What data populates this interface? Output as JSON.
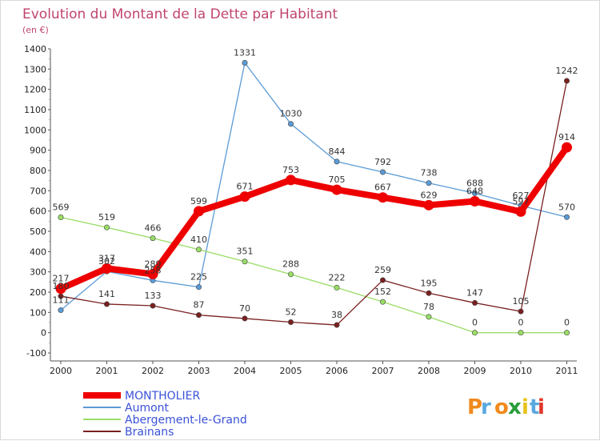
{
  "chart_data": {
    "type": "line",
    "title": "Evolution du Montant de la Dette par Habitant",
    "subtitle": "(en €)",
    "categories": [
      "2000",
      "2001",
      "2002",
      "2003",
      "2004",
      "2005",
      "2006",
      "2007",
      "2008",
      "2009",
      "2010",
      "2011"
    ],
    "ylim": [
      -100,
      1400
    ],
    "yticks": [
      -100,
      0,
      100,
      200,
      300,
      400,
      500,
      600,
      700,
      800,
      900,
      1000,
      1100,
      1200,
      1300,
      1400
    ],
    "grid": false,
    "legend_position": "bottom-left",
    "series": [
      {
        "name": "MONTHOLIER",
        "color": "#ee0000",
        "values": [
          217,
          317,
          289,
          599,
          671,
          753,
          705,
          667,
          629,
          648,
          597,
          914
        ]
      },
      {
        "name": "Aumont",
        "color": "#5b9bd5",
        "values": [
          111,
          302,
          258,
          225,
          1331,
          1030,
          844,
          792,
          738,
          688,
          627,
          570
        ]
      },
      {
        "name": "Abergement-le-Grand",
        "color": "#99dd66",
        "values": [
          569,
          519,
          466,
          410,
          351,
          288,
          222,
          152,
          78,
          0,
          0,
          0
        ]
      },
      {
        "name": "Brainans",
        "color": "#7a2020",
        "values": [
          180,
          141,
          133,
          87,
          70,
          52,
          38,
          259,
          195,
          147,
          105,
          1242
        ]
      }
    ]
  },
  "logo": {
    "text": "Proxiti",
    "colors": [
      "#f08a1c",
      "#5aa8e0",
      "#f08a1c",
      "#2a9d3a",
      "#e8c21a",
      "#5aa8e0",
      "#e0352b"
    ]
  }
}
